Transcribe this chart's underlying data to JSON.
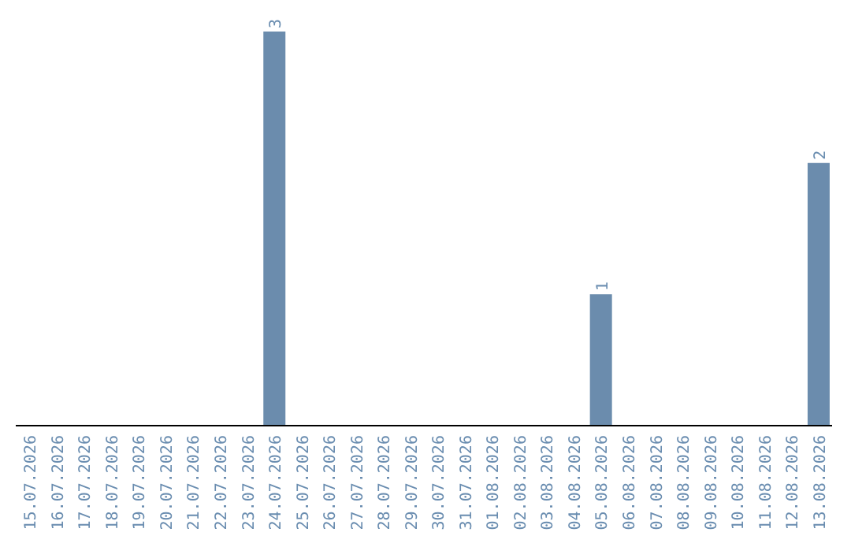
{
  "chart_data": {
    "type": "bar",
    "categories": [
      "15.07.2026",
      "16.07.2026",
      "17.07.2026",
      "18.07.2026",
      "19.07.2026",
      "20.07.2026",
      "21.07.2026",
      "22.07.2026",
      "23.07.2026",
      "24.07.2026",
      "25.07.2026",
      "26.07.2026",
      "27.07.2026",
      "28.07.2026",
      "29.07.2026",
      "30.07.2026",
      "31.07.2026",
      "01.08.2026",
      "02.08.2026",
      "03.08.2026",
      "04.08.2026",
      "05.08.2026",
      "06.08.2026",
      "07.08.2026",
      "08.08.2026",
      "09.08.2026",
      "10.08.2026",
      "11.08.2026",
      "12.08.2026",
      "13.08.2026"
    ],
    "values": [
      0,
      0,
      0,
      0,
      0,
      0,
      0,
      0,
      0,
      3,
      0,
      0,
      0,
      0,
      0,
      0,
      0,
      0,
      0,
      0,
      0,
      1,
      0,
      0,
      0,
      0,
      0,
      0,
      0,
      2
    ],
    "value_labels": [
      null,
      null,
      null,
      null,
      null,
      null,
      null,
      null,
      null,
      "3",
      null,
      null,
      null,
      null,
      null,
      null,
      null,
      null,
      null,
      null,
      null,
      "1",
      null,
      null,
      null,
      null,
      null,
      null,
      null,
      "2"
    ],
    "color": "#6b8cad"
  }
}
